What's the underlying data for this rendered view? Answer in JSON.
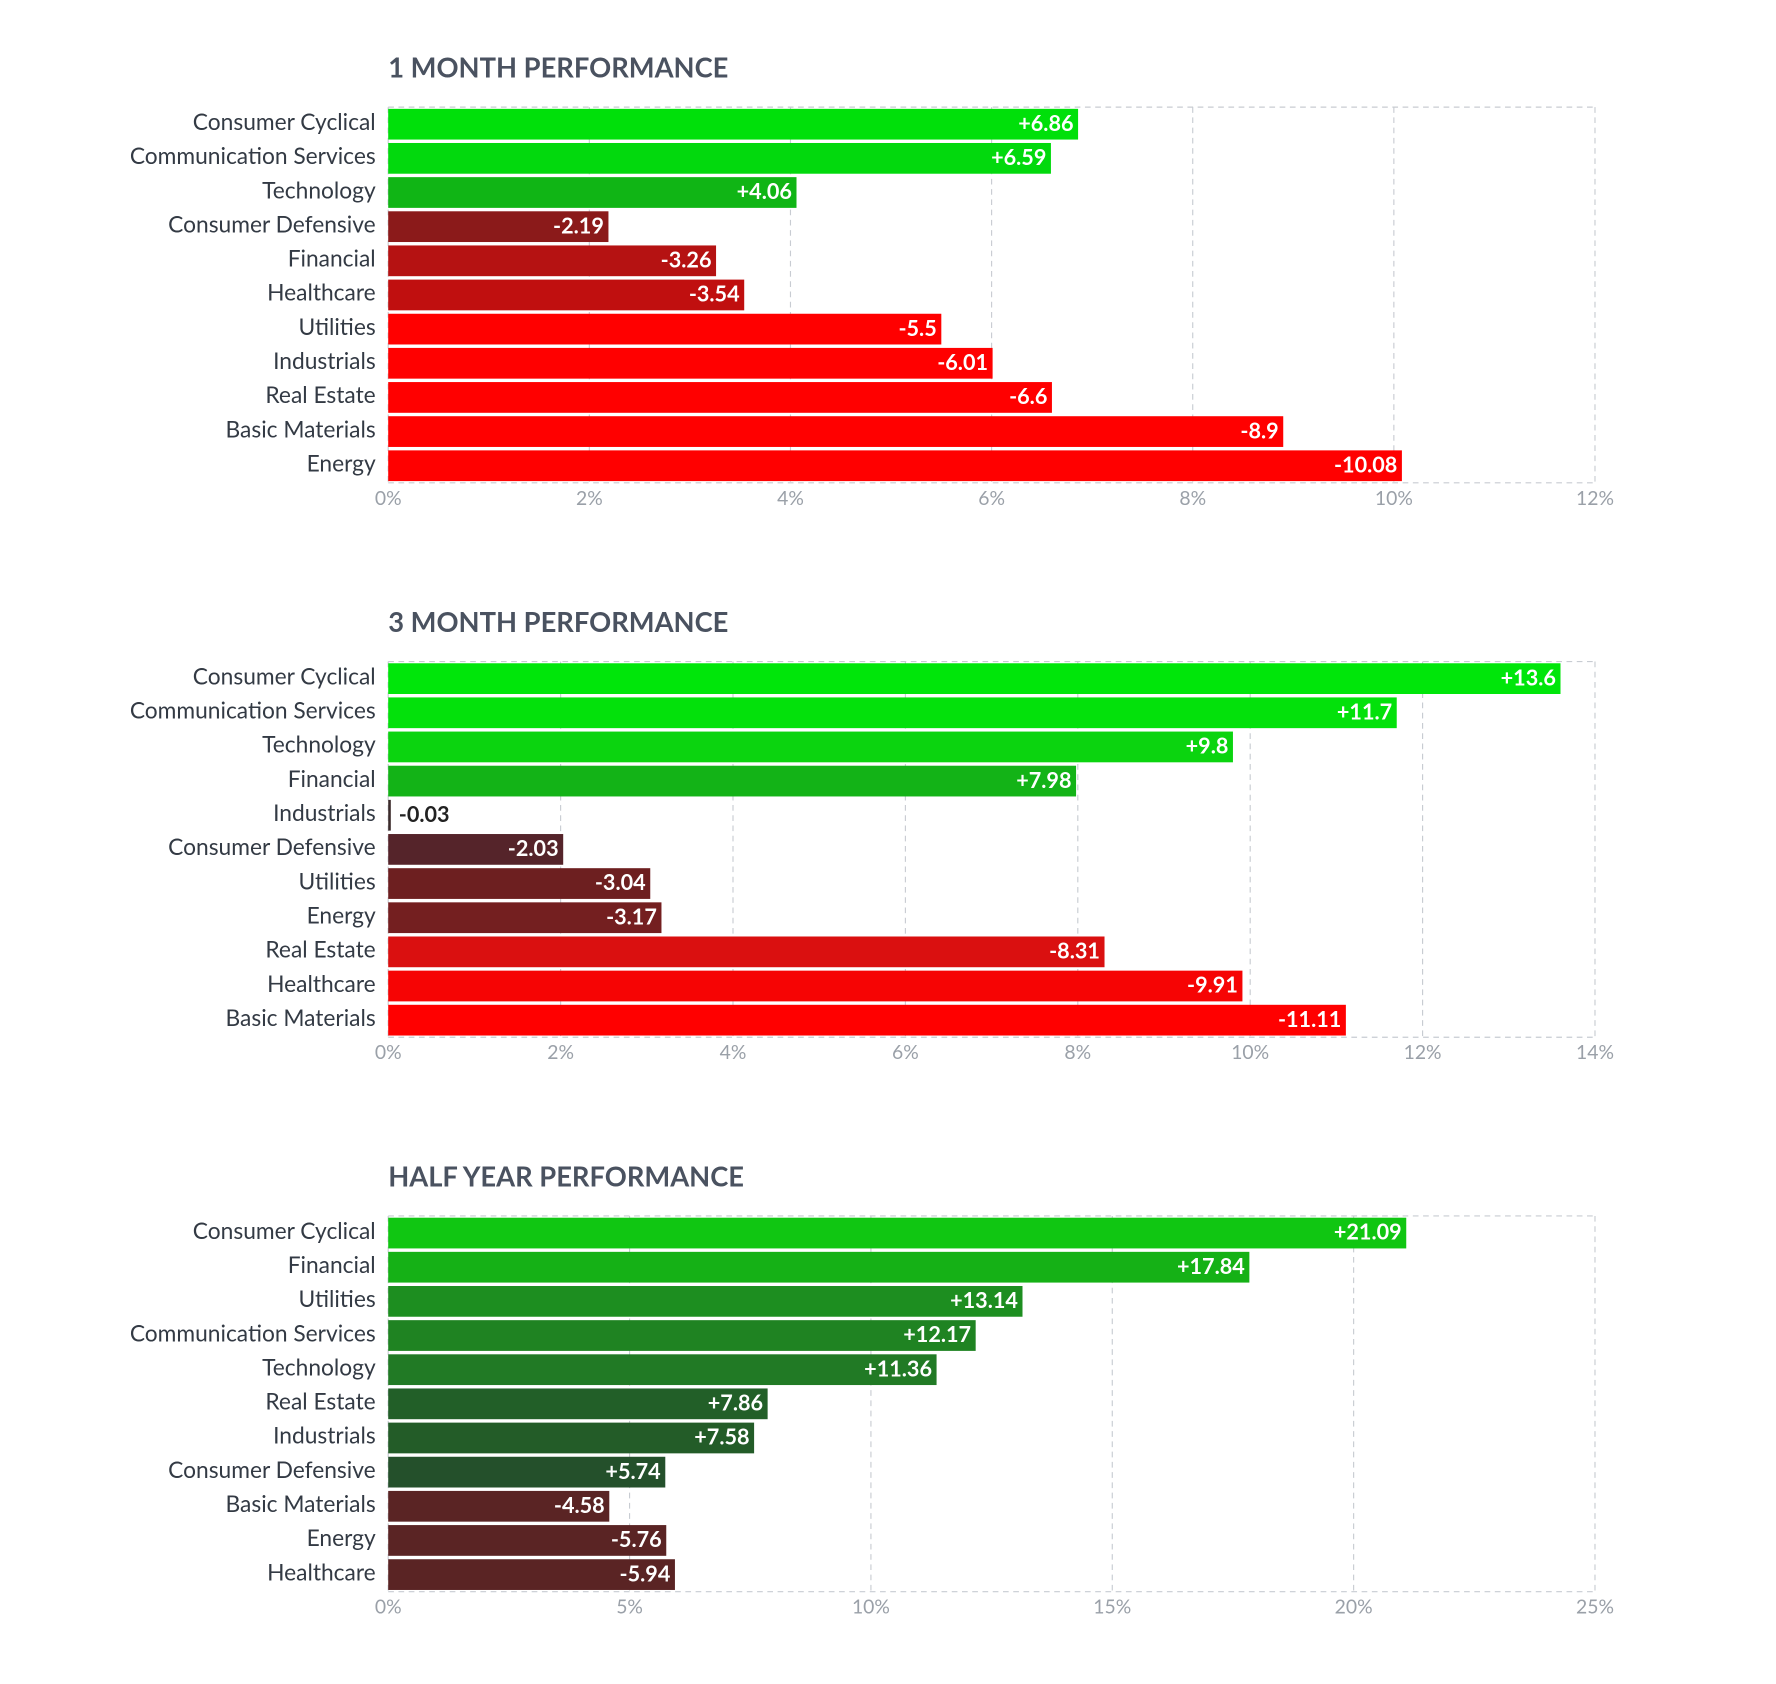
{
  "chart_data": [
    {
      "type": "bar",
      "orientation": "horizontal",
      "title": "1 MONTH PERFORMANCE",
      "categories": [
        "Consumer Cyclical",
        "Communication Services",
        "Technology",
        "Consumer Defensive",
        "Financial",
        "Healthcare",
        "Utilities",
        "Industrials",
        "Real Estate",
        "Basic Materials",
        "Energy"
      ],
      "values": [
        6.86,
        6.59,
        4.06,
        -2.19,
        -3.26,
        -3.54,
        -5.5,
        -6.01,
        -6.6,
        -8.9,
        -10.08
      ],
      "value_labels": [
        "+6.86",
        "+6.59",
        "+4.06",
        "-2.19",
        "-3.26",
        "-3.54",
        "-5.5",
        "-6.01",
        "-6.6",
        "-8.9",
        "-10.08"
      ],
      "colors": [
        "#00e00a",
        "#02d90d",
        "#10b515",
        "#8b1a1a",
        "#b51212",
        "#c00f0f",
        "#ff0000",
        "#ff0000",
        "#ff0000",
        "#ff0000",
        "#ff0000"
      ],
      "xlim": [
        0,
        12
      ],
      "xticks": [
        {
          "value": 0,
          "label": "0%"
        },
        {
          "value": 2,
          "label": "2%"
        },
        {
          "value": 4,
          "label": "4%"
        },
        {
          "value": 6,
          "label": "6%"
        },
        {
          "value": 8,
          "label": "8%"
        },
        {
          "value": 10,
          "label": "10%"
        },
        {
          "value": 12,
          "label": "12%"
        }
      ],
      "grid": true
    },
    {
      "type": "bar",
      "orientation": "horizontal",
      "title": "3 MONTH PERFORMANCE",
      "categories": [
        "Consumer Cyclical",
        "Communication Services",
        "Technology",
        "Financial",
        "Industrials",
        "Consumer Defensive",
        "Utilities",
        "Energy",
        "Real Estate",
        "Healthcare",
        "Basic Materials"
      ],
      "values": [
        13.6,
        11.7,
        9.8,
        7.98,
        -0.03,
        -2.03,
        -3.04,
        -3.17,
        -8.31,
        -9.91,
        -11.11
      ],
      "value_labels": [
        "+13.6",
        "+11.7",
        "+9.8",
        "+7.98",
        "-0.03",
        "-2.03",
        "-3.04",
        "-3.17",
        "-8.31",
        "-9.91",
        "-11.11"
      ],
      "colors": [
        "#00e60a",
        "#03e10b",
        "#0bd40f",
        "#13b317",
        "#3b2b2b",
        "#55242a",
        "#6d1f20",
        "#741f20",
        "#da1010",
        "#f60404",
        "#ff0000"
      ],
      "xlim": [
        0,
        14
      ],
      "xticks": [
        {
          "value": 0,
          "label": "0%"
        },
        {
          "value": 2,
          "label": "2%"
        },
        {
          "value": 4,
          "label": "4%"
        },
        {
          "value": 6,
          "label": "6%"
        },
        {
          "value": 8,
          "label": "8%"
        },
        {
          "value": 10,
          "label": "10%"
        },
        {
          "value": 12,
          "label": "12%"
        },
        {
          "value": 14,
          "label": "14%"
        }
      ],
      "grid": true
    },
    {
      "type": "bar",
      "orientation": "horizontal",
      "title": "HALF YEAR PERFORMANCE",
      "categories": [
        "Consumer Cyclical",
        "Financial",
        "Utilities",
        "Communication Services",
        "Technology",
        "Real Estate",
        "Industrials",
        "Consumer Defensive",
        "Basic Materials",
        "Energy",
        "Healthcare"
      ],
      "values": [
        21.09,
        17.84,
        13.14,
        12.17,
        11.36,
        7.86,
        7.58,
        5.74,
        -4.58,
        -5.76,
        -5.94
      ],
      "value_labels": [
        "+21.09",
        "+17.84",
        "+13.14",
        "+12.17",
        "+11.36",
        "+7.86",
        "+7.58",
        "+5.74",
        "-4.58",
        "-5.76",
        "-5.94"
      ],
      "colors": [
        "#10c612",
        "#15b116",
        "#1d8e20",
        "#1f8322",
        "#217a25",
        "#225f28",
        "#235c28",
        "#24502b",
        "#5a2424",
        "#5a2424",
        "#5a2424"
      ],
      "xlim": [
        0,
        25
      ],
      "xticks": [
        {
          "value": 0,
          "label": "0%"
        },
        {
          "value": 5,
          "label": "5%"
        },
        {
          "value": 10,
          "label": "10%"
        },
        {
          "value": 15,
          "label": "15%"
        },
        {
          "value": 20,
          "label": "20%"
        },
        {
          "value": 25,
          "label": "25%"
        }
      ],
      "grid": true
    }
  ]
}
